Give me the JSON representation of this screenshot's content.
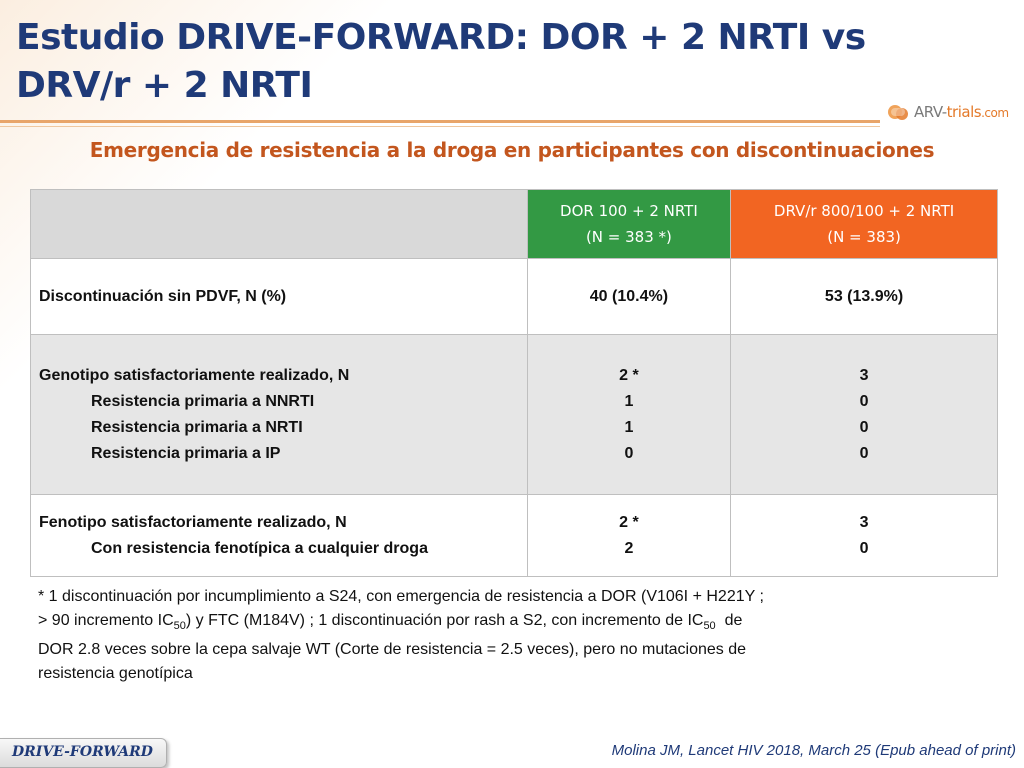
{
  "title": "Estudio DRIVE-FORWARD: DOR + 2 NRTI vs DRV/r + 2 NRTI",
  "logo": {
    "text_main": "ARV-",
    "text_accent": "trials",
    "text_suffix": ".com"
  },
  "subtitle": "Emergencia de resistencia a la droga en participantes con discontinuaciones",
  "table": {
    "headers": {
      "dor": {
        "line1": "DOR 100 + 2 NRTI",
        "line2": "(N = 383 *)"
      },
      "drv": {
        "line1": "DRV/r 800/100 + 2 NRTI",
        "line2": "(N = 383)"
      }
    },
    "rows": [
      {
        "labels": [
          "Discontinuación sin PDVF, N (%)"
        ],
        "dor": [
          "40 (10.4%)"
        ],
        "drv": [
          "53 (13.9%)"
        ]
      },
      {
        "labels": [
          "Genotipo satisfactoriamente realizado, N",
          "Resistencia primaria a NNRTI",
          "Resistencia primaria a NRTI",
          "Resistencia primaria a IP"
        ],
        "dor": [
          "2 *",
          "1",
          "1",
          "0"
        ],
        "drv": [
          "3",
          "0",
          "0",
          "0"
        ]
      },
      {
        "labels": [
          "Fenotipo satisfactoriamente realizado, N",
          "Con resistencia fenotípica a cualquier droga"
        ],
        "dor": [
          "2 *",
          "2"
        ],
        "drv": [
          "3",
          "0"
        ]
      }
    ]
  },
  "footnote": {
    "p1": "* 1 discontinuación por incumplimiento a S24, con emergencia de resistencia a DOR (V106I + H221Y ;",
    "p2a": "> 90 incremento IC",
    "sub1": "50",
    "p2b": ") y FTC (M184V) ; 1 discontinuación por rash a S2, con incremento de IC",
    "sub2": "50",
    "p2c": "  de",
    "p3": "DOR 2.8 veces sobre la cepa salvaje  WT (Corte de resistencia = 2.5 veces), pero no mutaciones de",
    "p4": "resistencia genotípica"
  },
  "footer_tag": "DRIVE-FORWARD",
  "citation": "Molina JM, Lancet HIV 2018, March 25 (Epub ahead of print)",
  "colors": {
    "title": "#1f3a78",
    "subtitle": "#c3561e",
    "dor_header": "#339944",
    "drv_header": "#f26522",
    "gray_row": "#e6e6e6"
  }
}
